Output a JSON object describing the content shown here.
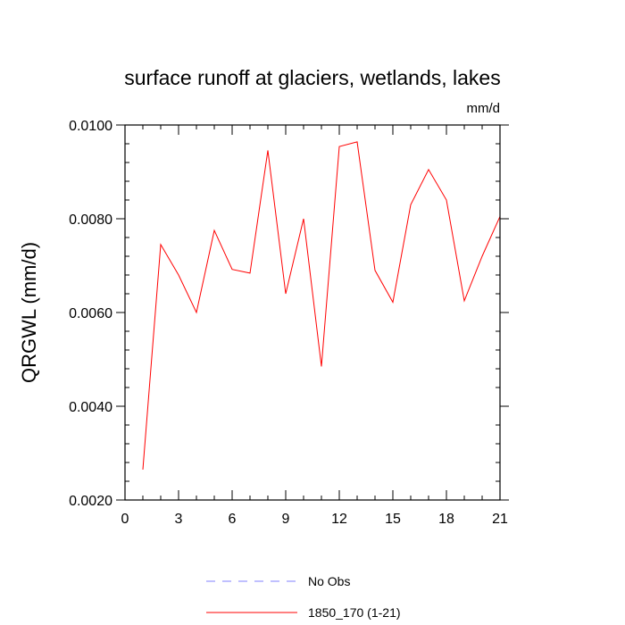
{
  "chart_data": {
    "type": "line",
    "title": "surface runoff at glaciers, wetlands, lakes",
    "units_label": "mm/d",
    "ylabel": "QRGWL  (mm/d)",
    "xlabel": "",
    "xlim": [
      0,
      21
    ],
    "ylim": [
      0.002,
      0.01
    ],
    "x_ticks": [
      0,
      3,
      6,
      9,
      12,
      15,
      18,
      21
    ],
    "x_tick_labels": [
      "0",
      "3",
      "6",
      "9",
      "12",
      "15",
      "18",
      "21"
    ],
    "y_ticks": [
      0.002,
      0.004,
      0.006,
      0.008,
      0.01
    ],
    "y_tick_labels": [
      "0.0020",
      "0.0040",
      "0.0060",
      "0.0080",
      "0.0100"
    ],
    "grid": false,
    "legend_position": "bottom",
    "series": [
      {
        "name": "No Obs",
        "color": "#8080ff",
        "dash": "dashed",
        "x": [],
        "values": []
      },
      {
        "name": "1850_170 (1-21)",
        "color": "#ff0000",
        "dash": "solid",
        "x": [
          1,
          2,
          3,
          4,
          5,
          6,
          7,
          8,
          9,
          10,
          11,
          12,
          13,
          14,
          15,
          16,
          17,
          18,
          19,
          20,
          21
        ],
        "values": [
          0.00265,
          0.00745,
          0.0068,
          0.006,
          0.00775,
          0.00692,
          0.00684,
          0.00946,
          0.0064,
          0.008,
          0.00485,
          0.00954,
          0.00964,
          0.0069,
          0.00622,
          0.0083,
          0.00905,
          0.0084,
          0.00625,
          0.0072,
          0.00805
        ]
      }
    ]
  }
}
